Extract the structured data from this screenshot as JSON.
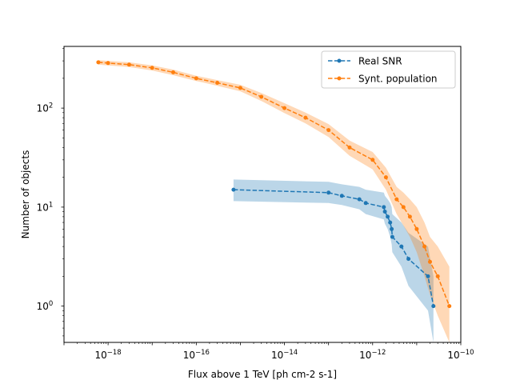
{
  "chart_data": {
    "type": "line",
    "title": "",
    "xlabel": "Flux above 1 TeV [ph cm-2 s-1]",
    "ylabel": "Number of objects",
    "x_scale": "log",
    "y_scale": "log",
    "xlim": [
      1e-19,
      1e-10
    ],
    "ylim": [
      0.43,
      420
    ],
    "x_ticks": [
      {
        "value": 1e-18,
        "base": "10",
        "exp": "−18"
      },
      {
        "value": 1e-16,
        "base": "10",
        "exp": "−16"
      },
      {
        "value": 1e-14,
        "base": "10",
        "exp": "−14"
      },
      {
        "value": 1e-12,
        "base": "10",
        "exp": "−12"
      },
      {
        "value": 1e-10,
        "base": "10",
        "exp": "−10"
      }
    ],
    "y_ticks": [
      {
        "value": 1,
        "base": "10",
        "exp": "0"
      },
      {
        "value": 10,
        "base": "10",
        "exp": "1"
      },
      {
        "value": 100,
        "base": "10",
        "exp": "2"
      }
    ],
    "grid": false,
    "legend_position": "top-right",
    "series": [
      {
        "name": "Real SNR",
        "color": "#1f77b4",
        "line_style": "dashed",
        "marker": "circle",
        "x": [
          7e-16,
          1e-13,
          2e-13,
          5e-13,
          7e-13,
          1.8e-12,
          1.9e-12,
          2.2e-12,
          2.5e-12,
          2.7e-12,
          2.8e-12,
          4.5e-12,
          6.5e-12,
          1.8e-11,
          2.4e-11
        ],
        "y": [
          15,
          14,
          13,
          12,
          11,
          10,
          9,
          8,
          7,
          6,
          5,
          4,
          3,
          2,
          1
        ],
        "band_upper": [
          19,
          18,
          17,
          16,
          15,
          14,
          13,
          12,
          11,
          10,
          8.5,
          7,
          5.5,
          4,
          2
        ],
        "band_lower": [
          11.5,
          11,
          10.5,
          9.5,
          8.5,
          7.5,
          6.8,
          6,
          5,
          4.2,
          3.5,
          2.5,
          1.6,
          0.9,
          0.43
        ]
      },
      {
        "name": "Synt. population",
        "color": "#ff7f0e",
        "line_style": "dashed",
        "marker": "circle",
        "x": [
          6e-19,
          1e-18,
          3e-18,
          1e-17,
          3e-17,
          1e-16,
          3e-16,
          1e-15,
          3e-15,
          1e-14,
          3e-14,
          1e-13,
          3e-13,
          1e-12,
          2e-12,
          3.5e-12,
          5e-12,
          7e-12,
          1e-11,
          1.5e-11,
          2e-11,
          3e-11,
          5.5e-11
        ],
        "y": [
          290,
          285,
          275,
          255,
          230,
          200,
          180,
          160,
          130,
          100,
          80,
          60,
          40,
          30,
          20,
          12,
          10,
          8,
          6,
          4,
          2.8,
          2,
          1
        ],
        "band_upper": [
          305,
          300,
          290,
          270,
          245,
          212,
          192,
          172,
          142,
          112,
          90,
          69,
          47,
          36,
          25,
          16,
          14,
          12,
          10,
          7,
          5,
          4,
          2.5
        ],
        "band_lower": [
          275,
          270,
          260,
          240,
          215,
          188,
          168,
          148,
          118,
          89,
          70,
          51,
          33,
          24,
          15,
          8.5,
          6.5,
          5,
          3.5,
          2,
          1.3,
          0.8,
          0.43
        ]
      }
    ]
  }
}
